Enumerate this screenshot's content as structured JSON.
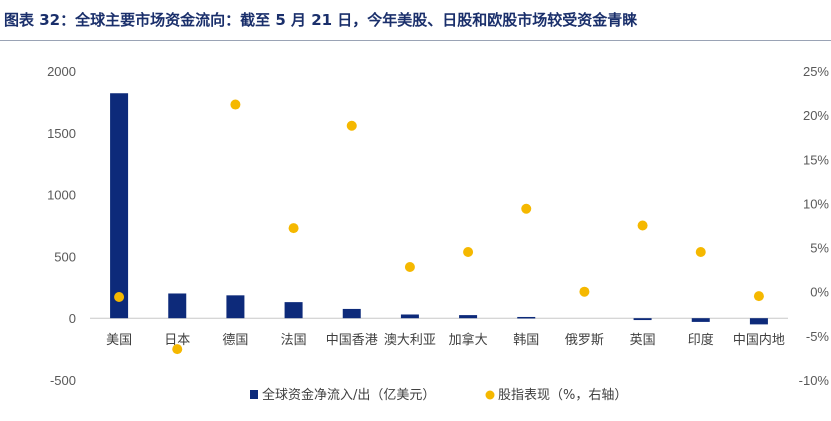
{
  "title": "图表 32：全球主要市场资金流向：截至 5 月 21 日，今年美股、日股和欧股市场较受资金青睐",
  "chart_data": {
    "type": "bar",
    "categories": [
      "美国",
      "日本",
      "德国",
      "法国",
      "中国香港",
      "澳大利亚",
      "加拿大",
      "韩国",
      "俄罗斯",
      "英国",
      "印度",
      "中国内地"
    ],
    "series": [
      {
        "name": "全球资金净流入/出（亿美元）",
        "type": "bar",
        "axis": "left",
        "values": [
          1820,
          200,
          185,
          130,
          75,
          30,
          25,
          10,
          0,
          -15,
          -30,
          -50
        ]
      },
      {
        "name": "股指表现（%，右轴）",
        "type": "scatter",
        "axis": "right",
        "values": [
          -0.6,
          -6.5,
          21.2,
          7.2,
          18.8,
          2.8,
          4.5,
          9.4,
          0.0,
          7.5,
          4.5,
          -0.5
        ]
      }
    ],
    "y_left": {
      "ylim": [
        -500,
        2000
      ],
      "ticks": [
        "-500",
        "0",
        "500",
        "1000",
        "1500",
        "2000"
      ],
      "tick_values": [
        -500,
        0,
        500,
        1000,
        1500,
        2000
      ]
    },
    "y_right": {
      "ylim": [
        -10,
        25
      ],
      "ticks": [
        "-10%",
        "-5%",
        "0%",
        "5%",
        "10%",
        "15%",
        "20%",
        "25%"
      ],
      "tick_values": [
        -10,
        -5,
        0,
        5,
        10,
        15,
        20,
        25
      ]
    },
    "legend_placement": "bottom-center",
    "grid": false,
    "colors": {
      "bar": "#0d2a7a",
      "dot": "#f5b800",
      "title": "#1a2f6b"
    }
  }
}
